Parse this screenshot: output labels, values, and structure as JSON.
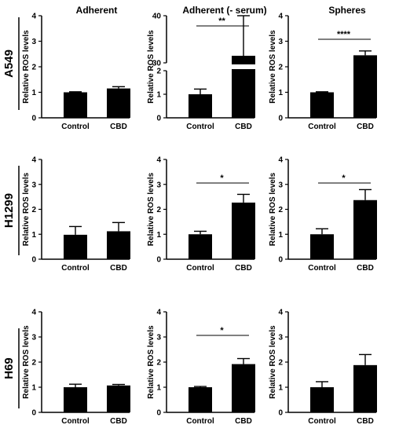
{
  "columns": [
    "Adherent",
    "Adherent (- serum)",
    "Spheres"
  ],
  "rows": [
    "A549",
    "H1299",
    "H69"
  ],
  "chart_data": [
    {
      "type": "bar",
      "row": "A549",
      "column": "Adherent",
      "ylabel": "Relative ROS levels",
      "ylim": [
        0,
        4
      ],
      "yticks": [
        "0",
        "1",
        "2",
        "3",
        "4"
      ],
      "categories": [
        "Control",
        "CBD"
      ],
      "values": [
        1.0,
        1.15
      ],
      "errors": [
        0.02,
        0.07
      ],
      "significance": ""
    },
    {
      "type": "bar",
      "row": "A549",
      "column": "Adherent (- serum)",
      "ylabel": "Relative ROS levels",
      "axis_break": true,
      "ylim_lower": [
        0,
        2
      ],
      "ylim_upper": [
        30,
        40
      ],
      "yticks": [
        "0",
        "1",
        "2",
        "30",
        "40"
      ],
      "categories": [
        "Control",
        "CBD"
      ],
      "values": [
        1.0,
        31.5
      ],
      "errors": [
        0.22,
        8.5
      ],
      "significance": "**"
    },
    {
      "type": "bar",
      "row": "A549",
      "column": "Spheres",
      "ylabel": "Relative ROS levels",
      "ylim": [
        0,
        4
      ],
      "yticks": [
        "0",
        "1",
        "2",
        "3",
        "4"
      ],
      "categories": [
        "Control",
        "CBD"
      ],
      "values": [
        1.0,
        2.45
      ],
      "errors": [
        0.02,
        0.17
      ],
      "significance": "****"
    },
    {
      "type": "bar",
      "row": "H1299",
      "column": "Adherent",
      "ylabel": "Relative ROS levels",
      "ylim": [
        0,
        4
      ],
      "yticks": [
        "0",
        "1",
        "2",
        "3",
        "4"
      ],
      "categories": [
        "Control",
        "CBD"
      ],
      "values": [
        0.98,
        1.12
      ],
      "errors": [
        0.33,
        0.35
      ],
      "significance": ""
    },
    {
      "type": "bar",
      "row": "H1299",
      "column": "Adherent (- serum)",
      "ylabel": "Relative ROS levels",
      "ylim": [
        0,
        4
      ],
      "yticks": [
        "0",
        "1",
        "2",
        "3",
        "4"
      ],
      "categories": [
        "Control",
        "CBD"
      ],
      "values": [
        1.0,
        2.27
      ],
      "errors": [
        0.12,
        0.33
      ],
      "significance": "*"
    },
    {
      "type": "bar",
      "row": "H1299",
      "column": "Spheres",
      "ylabel": "Relative ROS levels",
      "ylim": [
        0,
        4
      ],
      "yticks": [
        "0",
        "1",
        "2",
        "3",
        "4"
      ],
      "categories": [
        "Control",
        "CBD"
      ],
      "values": [
        1.0,
        2.37
      ],
      "errors": [
        0.22,
        0.42
      ],
      "significance": "*"
    },
    {
      "type": "bar",
      "row": "H69",
      "column": "Adherent",
      "ylabel": "Relative ROS levels",
      "ylim": [
        0,
        4
      ],
      "yticks": [
        "0",
        "1",
        "2",
        "3",
        "4"
      ],
      "categories": [
        "Control",
        "CBD"
      ],
      "values": [
        1.0,
        1.07
      ],
      "errors": [
        0.12,
        0.04
      ],
      "significance": ""
    },
    {
      "type": "bar",
      "row": "H69",
      "column": "Adherent (- serum)",
      "ylabel": "Relative ROS levels",
      "ylim": [
        0,
        4
      ],
      "yticks": [
        "0",
        "1",
        "2",
        "3",
        "4"
      ],
      "categories": [
        "Control",
        "CBD"
      ],
      "values": [
        1.0,
        1.92
      ],
      "errors": [
        0.03,
        0.22
      ],
      "significance": "*"
    },
    {
      "type": "bar",
      "row": "H69",
      "column": "Spheres",
      "ylabel": "Relative ROS levels",
      "ylim": [
        0,
        4
      ],
      "yticks": [
        "0",
        "1",
        "2",
        "3",
        "4"
      ],
      "categories": [
        "Control",
        "CBD"
      ],
      "values": [
        1.0,
        1.88
      ],
      "errors": [
        0.22,
        0.42
      ],
      "significance": ""
    }
  ]
}
